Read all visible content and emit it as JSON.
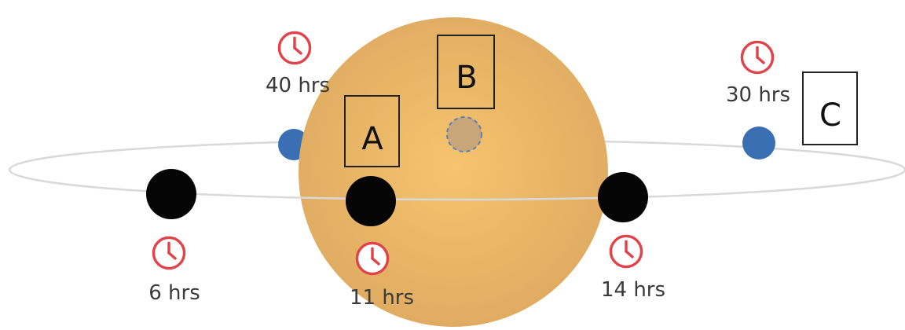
{
  "colors": {
    "star_center": "#f6c46e",
    "star_edge": "#e0ac62",
    "orbit": "#d9d9d9",
    "planet_dark": "#050505",
    "planet_blue": "#3a6fb4",
    "planet_shadow_fill": "#c9a57a",
    "planet_shadow_stroke": "#5a7fb8",
    "clock": "#e0444a",
    "box_stroke": "#222222"
  },
  "icons": {
    "time": "clock-icon"
  },
  "times": {
    "t40": "40 hrs",
    "t30": "30 hrs",
    "t6": "6 hrs",
    "t11": "11 hrs",
    "t14": "14 hrs"
  },
  "boxes": {
    "a": "A",
    "b": "B",
    "c": "C"
  }
}
